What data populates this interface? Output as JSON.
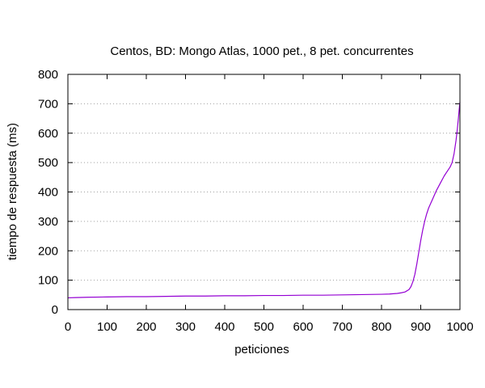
{
  "chart_data": {
    "type": "line",
    "title": "Centos, BD: Mongo Atlas,  1000 pet., 8 pet. concurrentes",
    "xlabel": "peticiones",
    "ylabel": "tiempo de respuesta (ms)",
    "xlim": [
      0,
      1000
    ],
    "ylim": [
      0,
      800
    ],
    "xticks": [
      0,
      100,
      200,
      300,
      400,
      500,
      600,
      700,
      800,
      900,
      1000
    ],
    "yticks": [
      0,
      100,
      200,
      300,
      400,
      500,
      600,
      700,
      800
    ],
    "grid": "horizontal dotted",
    "colors": {
      "line": "#9400d3"
    },
    "series": [
      {
        "x": [
          0,
          20,
          50,
          100,
          150,
          200,
          250,
          300,
          350,
          400,
          450,
          500,
          550,
          600,
          650,
          700,
          750,
          800,
          820,
          840,
          850,
          860,
          870,
          875,
          880,
          885,
          890,
          895,
          900,
          905,
          910,
          915,
          920,
          930,
          940,
          950,
          960,
          970,
          975,
          980,
          985,
          990,
          993,
          996,
          998,
          1000
        ],
        "values": [
          40,
          41,
          42,
          43,
          44,
          44,
          45,
          46,
          46,
          47,
          47,
          48,
          48,
          49,
          49,
          50,
          51,
          52,
          53,
          55,
          57,
          60,
          68,
          78,
          95,
          120,
          155,
          195,
          235,
          270,
          300,
          325,
          345,
          375,
          405,
          430,
          455,
          475,
          485,
          500,
          530,
          575,
          610,
          650,
          680,
          705
        ]
      }
    ]
  }
}
